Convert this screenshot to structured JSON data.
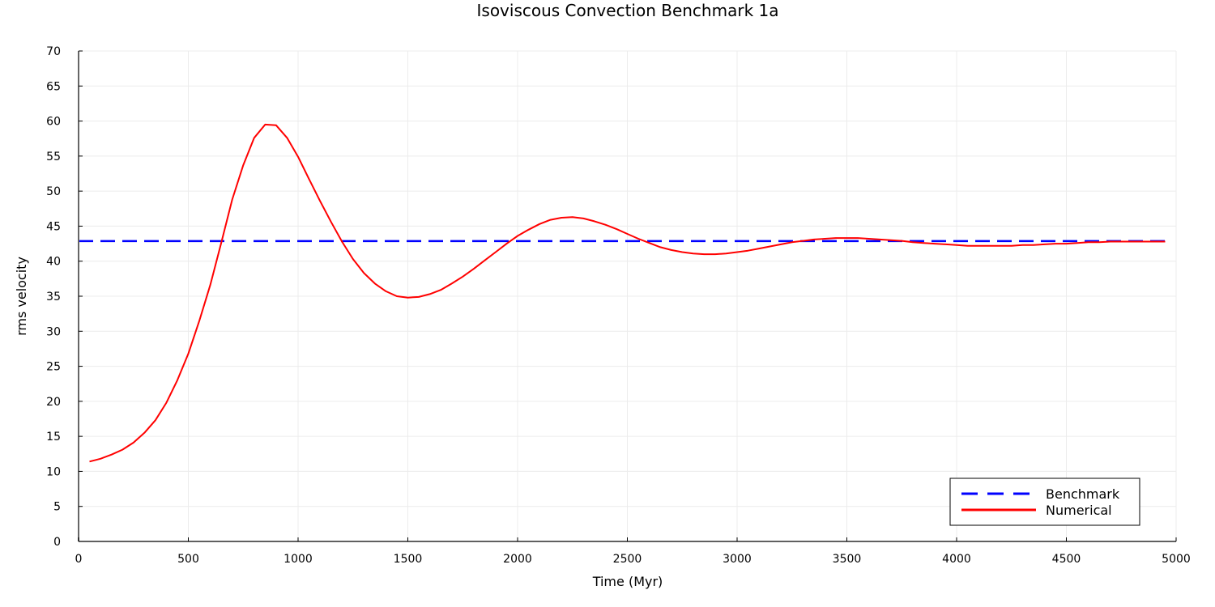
{
  "chart_data": {
    "type": "line",
    "title": "Isoviscous Convection Benchmark 1a",
    "xlabel": "Time (Myr)",
    "ylabel": "rms velocity",
    "xlim": [
      0,
      5000
    ],
    "ylim": [
      0,
      70
    ],
    "xticks": [
      0,
      500,
      1000,
      1500,
      2000,
      2500,
      3000,
      3500,
      4000,
      4500,
      5000
    ],
    "yticks": [
      0,
      5,
      10,
      15,
      20,
      25,
      30,
      35,
      40,
      45,
      50,
      55,
      60,
      65,
      70
    ],
    "grid": true,
    "legend_position": "bottom-right",
    "series": [
      {
        "name": "Benchmark",
        "color": "#0000ff",
        "style": "dashed",
        "x": [
          0,
          4950
        ],
        "values": [
          42.865,
          42.865
        ]
      },
      {
        "name": "Numerical",
        "color": "#ff0000",
        "style": "solid",
        "x": [
          50,
          100,
          150,
          200,
          250,
          300,
          350,
          400,
          450,
          500,
          550,
          600,
          650,
          700,
          750,
          800,
          850,
          900,
          950,
          1000,
          1050,
          1100,
          1150,
          1200,
          1250,
          1300,
          1350,
          1400,
          1450,
          1500,
          1550,
          1600,
          1650,
          1700,
          1750,
          1800,
          1850,
          1900,
          1950,
          2000,
          2050,
          2100,
          2150,
          2200,
          2250,
          2300,
          2350,
          2400,
          2450,
          2500,
          2550,
          2600,
          2650,
          2700,
          2750,
          2800,
          2850,
          2900,
          2950,
          3000,
          3050,
          3100,
          3150,
          3200,
          3250,
          3300,
          3350,
          3400,
          3450,
          3500,
          3550,
          3600,
          3650,
          3700,
          3750,
          3800,
          3850,
          3900,
          3950,
          4000,
          4050,
          4100,
          4150,
          4200,
          4250,
          4300,
          4350,
          4400,
          4450,
          4500,
          4550,
          4600,
          4650,
          4700,
          4750,
          4800,
          4850,
          4900,
          4950
        ],
        "values": [
          11.4,
          11.8,
          12.4,
          13.1,
          14.1,
          15.5,
          17.3,
          19.8,
          23.0,
          26.8,
          31.5,
          36.6,
          42.6,
          48.8,
          53.7,
          57.6,
          59.5,
          59.4,
          57.6,
          54.9,
          51.7,
          48.6,
          45.6,
          42.8,
          40.3,
          38.3,
          36.8,
          35.7,
          35.0,
          34.8,
          34.9,
          35.3,
          35.9,
          36.8,
          37.8,
          38.9,
          40.1,
          41.3,
          42.5,
          43.6,
          44.5,
          45.3,
          45.9,
          46.2,
          46.3,
          46.1,
          45.7,
          45.2,
          44.6,
          43.9,
          43.2,
          42.6,
          42.0,
          41.6,
          41.3,
          41.1,
          41.0,
          41.0,
          41.1,
          41.3,
          41.5,
          41.8,
          42.1,
          42.4,
          42.7,
          42.9,
          43.1,
          43.2,
          43.3,
          43.3,
          43.3,
          43.2,
          43.1,
          43.0,
          42.9,
          42.7,
          42.6,
          42.5,
          42.4,
          42.3,
          42.2,
          42.2,
          42.2,
          42.2,
          42.2,
          42.3,
          42.3,
          42.4,
          42.5,
          42.5,
          42.6,
          42.7,
          42.7,
          42.8,
          42.8,
          42.8,
          42.8,
          42.8,
          42.8
        ]
      }
    ]
  }
}
